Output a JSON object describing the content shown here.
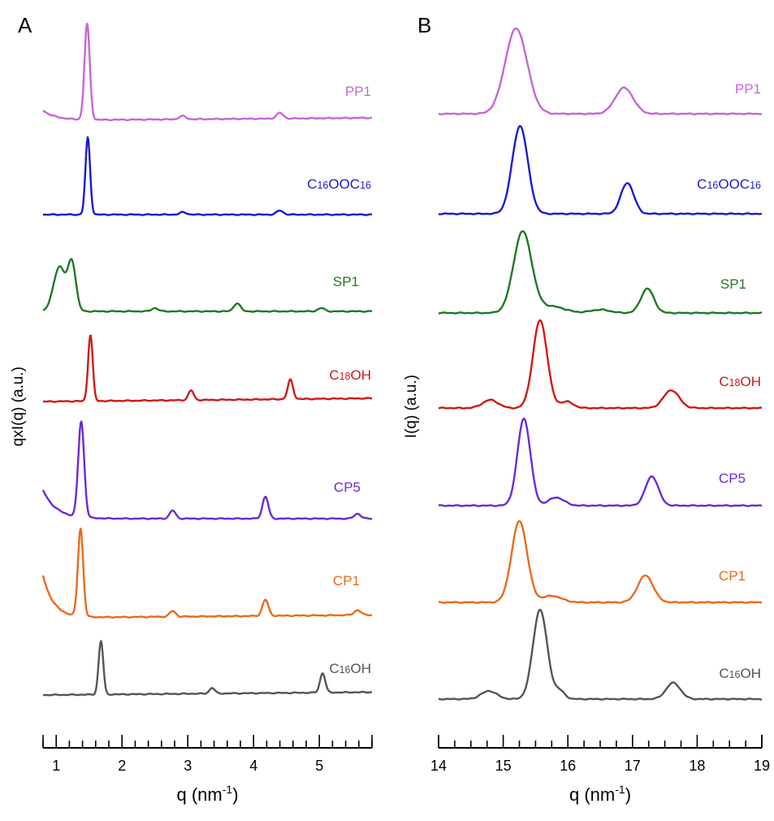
{
  "chart_data": [
    {
      "type": "line",
      "panel_label": "A",
      "xlabel": "q (nm",
      "xlabel_sup": "-1",
      "xlabel_close": ")",
      "ylabel": "qxI(q)  (a.u.)",
      "xlim": [
        0.8,
        5.8
      ],
      "xticks": [
        1,
        2,
        3,
        4,
        5
      ],
      "minor_tick_step": 0.2,
      "y_axis_values": "hidden (arbitrary units, traces stacked with vertical offsets)",
      "series": [
        {
          "name": "PP1",
          "name_parts": [
            [
              "PP1",
              false
            ]
          ],
          "color": "#c765d8",
          "baseline": 0.6,
          "edge": 12,
          "edge_decay": 0.2,
          "peaks": [
            [
              1.47,
              118,
              0.04
            ],
            [
              2.92,
              4,
              0.05
            ],
            [
              4.4,
              7,
              0.05
            ]
          ]
        },
        {
          "name": "C16OOC16",
          "name_parts": [
            [
              "C",
              false
            ],
            [
              "16",
              true
            ],
            [
              "OOC",
              false
            ],
            [
              "16",
              true
            ]
          ],
          "color": "#1a1ad0",
          "baseline": 0.0,
          "edge": 0,
          "edge_decay": 0.2,
          "peaks": [
            [
              1.48,
              95,
              0.035
            ],
            [
              2.93,
              3,
              0.05
            ],
            [
              4.4,
              5,
              0.05
            ]
          ]
        },
        {
          "name": "SP1",
          "name_parts": [
            [
              "SP1",
              false
            ]
          ],
          "color": "#1e7a22",
          "baseline": 0.0,
          "edge": 0,
          "edge_decay": 0.2,
          "peaks": [
            [
              1.05,
              55,
              0.09
            ],
            [
              1.24,
              58,
              0.06
            ],
            [
              2.5,
              4,
              0.05
            ],
            [
              3.75,
              10,
              0.05
            ],
            [
              5.03,
              4,
              0.05
            ]
          ]
        },
        {
          "name": "C18OH",
          "name_parts": [
            [
              "C",
              false
            ],
            [
              "18",
              true
            ],
            [
              "OH",
              false
            ]
          ],
          "color": "#d01818",
          "baseline": 0.8,
          "edge": 0,
          "edge_decay": 0.2,
          "peaks": [
            [
              1.52,
              82,
              0.035
            ],
            [
              3.05,
              12,
              0.04
            ],
            [
              4.56,
              24,
              0.04
            ]
          ]
        },
        {
          "name": "CP5",
          "name_parts": [
            [
              "CP5",
              false
            ]
          ],
          "color": "#6a2ad8",
          "baseline": 0.0,
          "edge": 35,
          "edge_decay": 0.2,
          "peaks": [
            [
              1.38,
              118,
              0.045
            ],
            [
              2.77,
              10,
              0.045
            ],
            [
              4.18,
              27,
              0.045
            ],
            [
              5.58,
              6,
              0.05
            ]
          ]
        },
        {
          "name": "CP1",
          "name_parts": [
            [
              "CP1",
              false
            ]
          ],
          "color": "#ea6a1a",
          "baseline": 0.7,
          "edge": 52,
          "edge_decay": 0.16,
          "peaks": [
            [
              1.37,
              108,
              0.04
            ],
            [
              2.77,
              7,
              0.045
            ],
            [
              4.18,
              20,
              0.045
            ],
            [
              5.58,
              6,
              0.05
            ]
          ]
        },
        {
          "name": "C16OH",
          "name_parts": [
            [
              "C",
              false
            ],
            [
              "16",
              true
            ],
            [
              "OH",
              false
            ]
          ],
          "color": "#555555",
          "baseline": 0.7,
          "edge": 0,
          "edge_decay": 0.2,
          "peaks": [
            [
              1.68,
              66,
              0.035
            ],
            [
              3.37,
              7,
              0.04
            ],
            [
              5.05,
              24,
              0.04
            ]
          ]
        }
      ]
    },
    {
      "type": "line",
      "panel_label": "B",
      "xlabel": "q (nm",
      "xlabel_sup": "-1",
      "xlabel_close": ")",
      "ylabel": "I(q)  (a.u.)",
      "xlim": [
        14,
        19
      ],
      "xticks": [
        14,
        15,
        16,
        17,
        18,
        19
      ],
      "minor_tick_step": 0.25,
      "y_axis_values": "hidden (arbitrary units, traces stacked with vertical offsets)",
      "series": [
        {
          "name": "PP1",
          "name_parts": [
            [
              "PP1",
              false
            ]
          ],
          "color": "#c765d8",
          "baseline": 0.0,
          "edge": 0,
          "edge_decay": 0.2,
          "peaks": [
            [
              15.2,
              105,
              0.17
            ],
            [
              16.87,
              32,
              0.14
            ]
          ]
        },
        {
          "name": "C16OOC16",
          "name_parts": [
            [
              "C",
              false
            ],
            [
              "16",
              true
            ],
            [
              "OOC",
              false
            ],
            [
              "16",
              true
            ]
          ],
          "color": "#1a1ad0",
          "baseline": 0.0,
          "edge": 0,
          "edge_decay": 0.2,
          "peaks": [
            [
              15.26,
              108,
              0.12
            ],
            [
              16.92,
              38,
              0.1
            ]
          ]
        },
        {
          "name": "SP1",
          "name_parts": [
            [
              "SP1",
              false
            ]
          ],
          "color": "#1e7a22",
          "baseline": 0.0,
          "edge": 0,
          "edge_decay": 0.2,
          "peaks": [
            [
              15.3,
              100,
              0.14
            ],
            [
              15.75,
              8,
              0.2
            ],
            [
              16.5,
              4,
              0.15
            ],
            [
              17.23,
              30,
              0.1
            ]
          ]
        },
        {
          "name": "C18OH",
          "name_parts": [
            [
              "C",
              false
            ],
            [
              "18",
              true
            ],
            [
              "OH",
              false
            ]
          ],
          "color": "#d01818",
          "baseline": 0.0,
          "edge": 0,
          "edge_decay": 0.2,
          "peaks": [
            [
              14.8,
              10,
              0.12
            ],
            [
              15.57,
              108,
              0.11
            ],
            [
              15.98,
              8,
              0.1
            ],
            [
              17.6,
              22,
              0.12
            ]
          ]
        },
        {
          "name": "CP5",
          "name_parts": [
            [
              "CP5",
              false
            ]
          ],
          "color": "#6a2ad8",
          "baseline": 0.0,
          "edge": 0,
          "edge_decay": 0.2,
          "peaks": [
            [
              15.32,
              107,
              0.1
            ],
            [
              15.82,
              10,
              0.12
            ],
            [
              17.3,
              36,
              0.1
            ]
          ]
        },
        {
          "name": "CP1",
          "name_parts": [
            [
              "CP1",
              false
            ]
          ],
          "color": "#ea6a1a",
          "baseline": 0.0,
          "edge": 0,
          "edge_decay": 0.2,
          "peaks": [
            [
              15.25,
              100,
              0.12
            ],
            [
              15.75,
              8,
              0.15
            ],
            [
              17.2,
              33,
              0.12
            ]
          ]
        },
        {
          "name": "C16OH",
          "name_parts": [
            [
              "C",
              false
            ],
            [
              "16",
              true
            ],
            [
              "OH",
              false
            ]
          ],
          "color": "#555555",
          "baseline": 0.0,
          "edge": 0,
          "edge_decay": 0.2,
          "peaks": [
            [
              14.78,
              10,
              0.12
            ],
            [
              15.57,
              110,
              0.11
            ],
            [
              15.87,
              10,
              0.08
            ],
            [
              17.63,
              20,
              0.11
            ]
          ]
        }
      ]
    }
  ]
}
